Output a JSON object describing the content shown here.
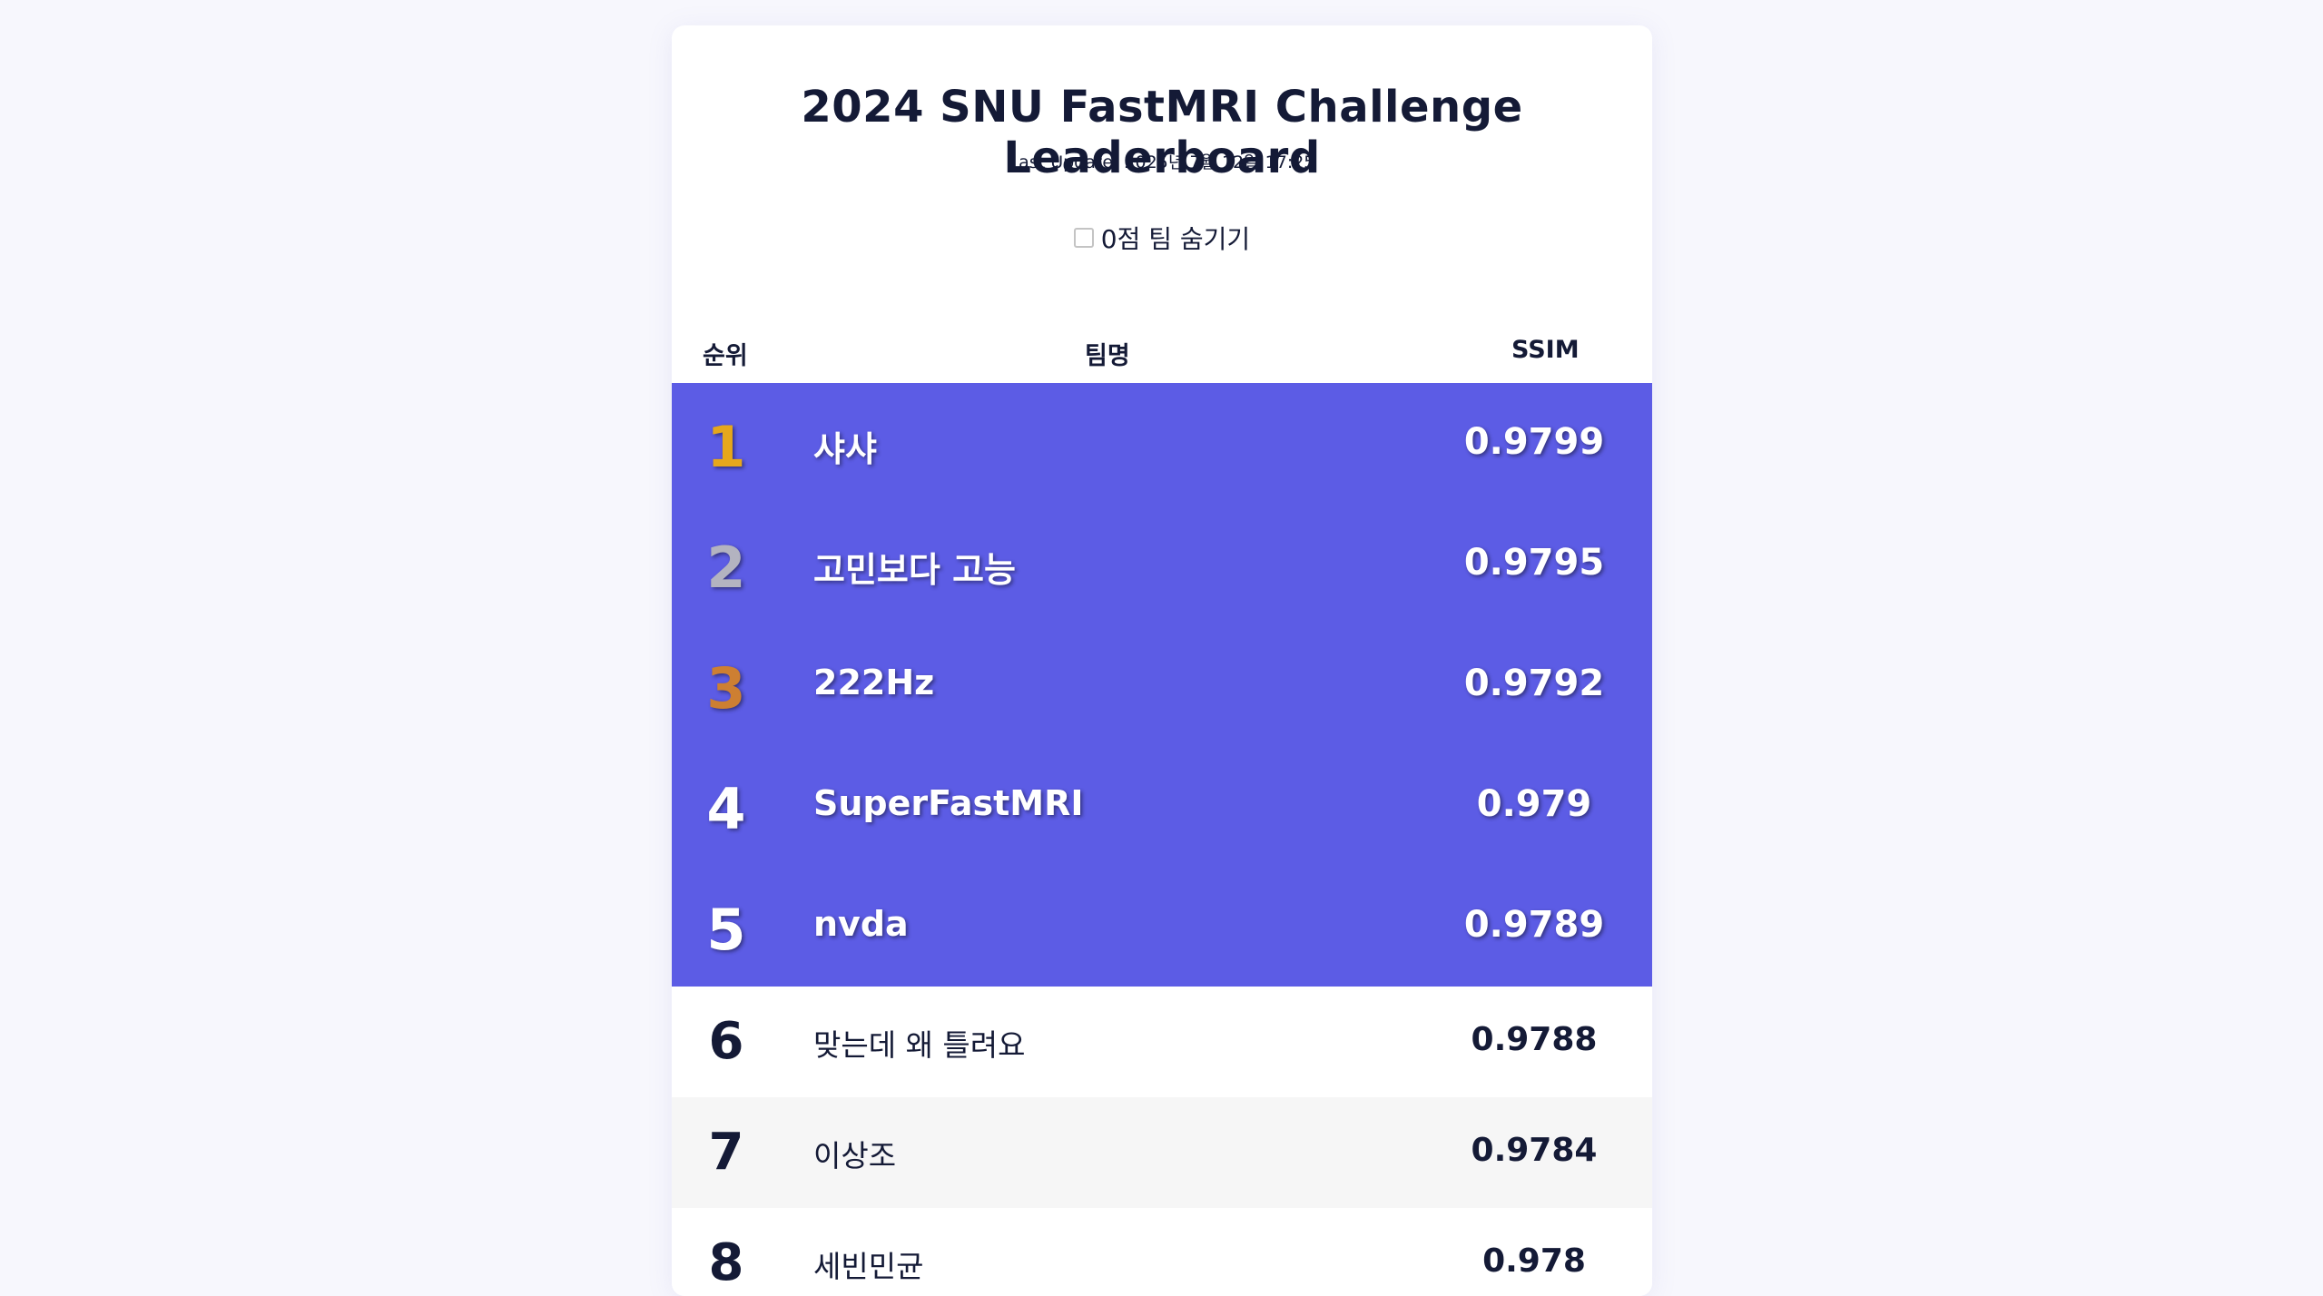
{
  "page": {
    "title": "2024 SNU FastMRI Challenge Leaderboard",
    "last_update": "Last Update: 2025년 7월 12일 17:25"
  },
  "filter": {
    "label": "0점 팀 숨기기",
    "checked": false
  },
  "table": {
    "headers": {
      "rank": "순위",
      "team": "팀명",
      "score": "SSIM"
    },
    "rows": [
      {
        "rank": "1",
        "team": "샤샤",
        "score": "0.9799",
        "highlight": true,
        "medal": "gold"
      },
      {
        "rank": "2",
        "team": "고민보다 고능",
        "score": "0.9795",
        "highlight": true,
        "medal": "silver"
      },
      {
        "rank": "3",
        "team": "222Hz",
        "score": "0.9792",
        "highlight": true,
        "medal": "bronze"
      },
      {
        "rank": "4",
        "team": "SuperFastMRI",
        "score": "0.979",
        "highlight": true,
        "medal": ""
      },
      {
        "rank": "5",
        "team": "nvda",
        "score": "0.9789",
        "highlight": true,
        "medal": ""
      },
      {
        "rank": "6",
        "team": "맞는데 왜 틀려요",
        "score": "0.9788",
        "highlight": false,
        "medal": ""
      },
      {
        "rank": "7",
        "team": "이상조",
        "score": "0.9784",
        "highlight": false,
        "medal": ""
      },
      {
        "rank": "8",
        "team": "세빈민균",
        "score": "0.978",
        "highlight": false,
        "medal": ""
      }
    ]
  },
  "colors": {
    "highlight_row": "#5c5ce5",
    "gold": "#e6a71c",
    "silver": "#b3b3c0",
    "bronze": "#cd7f32",
    "text_dark": "#141a36"
  }
}
